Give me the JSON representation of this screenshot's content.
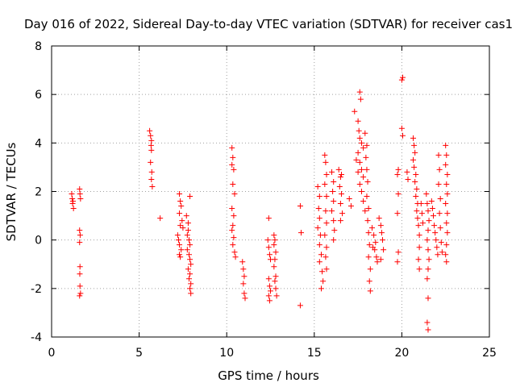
{
  "chart_data": {
    "type": "scatter",
    "title": "Day 016 of 2022, Sidereal Day-to-day VTEC variation (SDTVAR) for receiver cas1",
    "xlabel": "GPS time / hours",
    "ylabel": "SDTVAR / TECUs",
    "xlim": [
      0,
      25
    ],
    "ylim": [
      -4,
      8
    ],
    "xticks": [
      0,
      5,
      10,
      15,
      20,
      25
    ],
    "yticks": [
      -4,
      -2,
      0,
      2,
      4,
      6,
      8
    ],
    "xtick_labels": [
      "0",
      "5",
      "10",
      "15",
      "20",
      "25"
    ],
    "ytick_labels": [
      "-4",
      "-2",
      "0",
      "2",
      "4",
      "6",
      "8"
    ],
    "grid": true,
    "marker": "+",
    "color": "#ff0000",
    "series": [
      {
        "name": "SDTVAR",
        "points": [
          [
            1.15,
            1.9
          ],
          [
            1.18,
            1.7
          ],
          [
            1.2,
            1.5
          ],
          [
            1.25,
            1.3
          ],
          [
            1.22,
            1.6
          ],
          [
            1.6,
            2.1
          ],
          [
            1.62,
            1.9
          ],
          [
            1.65,
            1.7
          ],
          [
            1.6,
            0.4
          ],
          [
            1.63,
            0.2
          ],
          [
            1.6,
            -0.1
          ],
          [
            1.62,
            -1.1
          ],
          [
            1.61,
            -1.4
          ],
          [
            1.62,
            -1.9
          ],
          [
            1.6,
            -2.3
          ],
          [
            1.65,
            -2.2
          ],
          [
            5.6,
            4.5
          ],
          [
            5.65,
            4.3
          ],
          [
            5.7,
            4.1
          ],
          [
            5.68,
            3.9
          ],
          [
            5.7,
            3.7
          ],
          [
            5.65,
            3.2
          ],
          [
            5.72,
            2.8
          ],
          [
            5.7,
            2.5
          ],
          [
            5.75,
            2.2
          ],
          [
            6.2,
            0.9
          ],
          [
            7.3,
            1.9
          ],
          [
            7.35,
            1.6
          ],
          [
            7.4,
            1.4
          ],
          [
            7.3,
            1.1
          ],
          [
            7.45,
            0.8
          ],
          [
            7.35,
            0.6
          ],
          [
            7.5,
            0.5
          ],
          [
            7.2,
            0.2
          ],
          [
            7.25,
            0.0
          ],
          [
            7.3,
            -0.2
          ],
          [
            7.4,
            -0.4
          ],
          [
            7.3,
            -0.6
          ],
          [
            7.35,
            -0.7
          ],
          [
            7.7,
            1.0
          ],
          [
            7.8,
            0.7
          ],
          [
            7.8,
            0.4
          ],
          [
            7.75,
            0.2
          ],
          [
            7.85,
            0.0
          ],
          [
            7.9,
            -0.2
          ],
          [
            7.75,
            -0.4
          ],
          [
            7.85,
            -0.6
          ],
          [
            7.9,
            -0.8
          ],
          [
            7.95,
            -1.0
          ],
          [
            7.8,
            -1.2
          ],
          [
            7.9,
            -1.4
          ],
          [
            7.85,
            -1.6
          ],
          [
            7.95,
            -1.8
          ],
          [
            7.9,
            -2.0
          ],
          [
            7.95,
            -2.2
          ],
          [
            7.9,
            1.8
          ],
          [
            10.3,
            3.8
          ],
          [
            10.35,
            3.4
          ],
          [
            10.3,
            3.1
          ],
          [
            10.4,
            2.9
          ],
          [
            10.35,
            2.3
          ],
          [
            10.45,
            1.9
          ],
          [
            10.3,
            1.3
          ],
          [
            10.4,
            1.0
          ],
          [
            10.35,
            0.6
          ],
          [
            10.3,
            0.4
          ],
          [
            10.4,
            0.1
          ],
          [
            10.35,
            -0.2
          ],
          [
            10.45,
            -0.5
          ],
          [
            10.5,
            -0.7
          ],
          [
            10.9,
            -0.9
          ],
          [
            10.95,
            -1.2
          ],
          [
            11.0,
            -1.5
          ],
          [
            10.95,
            -1.8
          ],
          [
            11.0,
            -2.2
          ],
          [
            11.05,
            -2.4
          ],
          [
            12.4,
            0.9
          ],
          [
            12.35,
            0.0
          ],
          [
            12.4,
            -0.3
          ],
          [
            12.45,
            -0.6
          ],
          [
            12.5,
            -0.8
          ],
          [
            12.4,
            -1.6
          ],
          [
            12.45,
            -1.9
          ],
          [
            12.5,
            -2.1
          ],
          [
            12.4,
            -2.3
          ],
          [
            12.45,
            -2.5
          ],
          [
            12.7,
            0.2
          ],
          [
            12.75,
            0.0
          ],
          [
            12.7,
            -0.2
          ],
          [
            12.8,
            -0.5
          ],
          [
            12.75,
            -0.8
          ],
          [
            12.7,
            -1.1
          ],
          [
            12.8,
            -1.5
          ],
          [
            12.75,
            -1.7
          ],
          [
            12.8,
            -2.0
          ],
          [
            12.85,
            -2.3
          ],
          [
            14.2,
            1.4
          ],
          [
            14.25,
            0.3
          ],
          [
            14.2,
            -2.7
          ],
          [
            15.2,
            2.2
          ],
          [
            15.3,
            1.8
          ],
          [
            15.25,
            1.3
          ],
          [
            15.3,
            0.9
          ],
          [
            15.2,
            0.5
          ],
          [
            15.35,
            0.2
          ],
          [
            15.3,
            -0.2
          ],
          [
            15.4,
            -0.6
          ],
          [
            15.3,
            -0.9
          ],
          [
            15.45,
            -1.3
          ],
          [
            15.5,
            -1.7
          ],
          [
            15.4,
            -2.0
          ],
          [
            15.6,
            3.5
          ],
          [
            15.65,
            3.2
          ],
          [
            15.7,
            2.7
          ],
          [
            15.6,
            2.3
          ],
          [
            15.7,
            1.8
          ],
          [
            15.65,
            1.2
          ],
          [
            15.7,
            0.7
          ],
          [
            15.6,
            0.2
          ],
          [
            15.7,
            -0.3
          ],
          [
            15.65,
            -0.7
          ],
          [
            15.7,
            -1.2
          ],
          [
            16.0,
            2.8
          ],
          [
            16.1,
            2.4
          ],
          [
            16.05,
            2.0
          ],
          [
            16.1,
            1.6
          ],
          [
            16.0,
            1.2
          ],
          [
            16.1,
            0.8
          ],
          [
            16.15,
            0.4
          ],
          [
            16.1,
            0.0
          ],
          [
            16.4,
            2.9
          ],
          [
            16.5,
            2.6
          ],
          [
            16.45,
            2.2
          ],
          [
            16.55,
            1.9
          ],
          [
            16.5,
            1.5
          ],
          [
            16.6,
            1.1
          ],
          [
            16.5,
            0.8
          ],
          [
            16.55,
            2.7
          ],
          [
            17.0,
            1.7
          ],
          [
            17.1,
            1.4
          ],
          [
            17.3,
            5.3
          ],
          [
            17.6,
            6.1
          ],
          [
            17.65,
            5.8
          ],
          [
            17.5,
            4.9
          ],
          [
            17.55,
            4.5
          ],
          [
            17.6,
            4.2
          ],
          [
            17.7,
            4.0
          ],
          [
            17.8,
            3.8
          ],
          [
            17.5,
            3.6
          ],
          [
            17.6,
            3.2
          ],
          [
            17.7,
            2.9
          ],
          [
            17.8,
            2.6
          ],
          [
            17.6,
            2.3
          ],
          [
            17.7,
            2.0
          ],
          [
            17.8,
            1.6
          ],
          [
            17.9,
            1.2
          ],
          [
            17.5,
            2.8
          ],
          [
            17.4,
            3.3
          ],
          [
            17.9,
            4.4
          ],
          [
            18.0,
            3.9
          ],
          [
            17.95,
            3.4
          ],
          [
            18.0,
            2.9
          ],
          [
            18.05,
            2.4
          ],
          [
            18.0,
            1.8
          ],
          [
            18.1,
            1.3
          ],
          [
            18.05,
            0.8
          ],
          [
            18.1,
            0.3
          ],
          [
            18.15,
            -0.2
          ],
          [
            18.1,
            -0.7
          ],
          [
            18.2,
            -1.2
          ],
          [
            18.15,
            -1.7
          ],
          [
            18.2,
            -2.1
          ],
          [
            18.3,
            0.5
          ],
          [
            18.4,
            0.2
          ],
          [
            18.5,
            -0.1
          ],
          [
            18.45,
            -0.4
          ],
          [
            18.55,
            -0.7
          ],
          [
            18.6,
            -0.9
          ],
          [
            18.35,
            -0.3
          ],
          [
            18.7,
            0.9
          ],
          [
            18.8,
            0.6
          ],
          [
            18.85,
            0.3
          ],
          [
            18.9,
            0.0
          ],
          [
            18.95,
            -0.4
          ],
          [
            18.8,
            -0.8
          ],
          [
            19.8,
            2.9
          ],
          [
            19.75,
            2.7
          ],
          [
            19.8,
            1.9
          ],
          [
            19.75,
            1.1
          ],
          [
            19.8,
            -0.5
          ],
          [
            19.75,
            -0.9
          ],
          [
            20.0,
            6.6
          ],
          [
            20.05,
            6.7
          ],
          [
            20.0,
            4.6
          ],
          [
            20.05,
            4.3
          ],
          [
            20.3,
            2.8
          ],
          [
            20.35,
            2.5
          ],
          [
            20.65,
            4.2
          ],
          [
            20.7,
            3.9
          ],
          [
            20.75,
            3.6
          ],
          [
            20.65,
            3.3
          ],
          [
            20.7,
            3.0
          ],
          [
            20.8,
            2.7
          ],
          [
            20.75,
            2.4
          ],
          [
            20.85,
            2.1
          ],
          [
            20.8,
            1.8
          ],
          [
            20.9,
            1.5
          ],
          [
            20.85,
            1.2
          ],
          [
            20.9,
            0.9
          ],
          [
            20.95,
            0.6
          ],
          [
            21.0,
            0.2
          ],
          [
            21.0,
            -0.3
          ],
          [
            20.95,
            -0.8
          ],
          [
            21.0,
            -1.2
          ],
          [
            21.1,
            1.5
          ],
          [
            21.15,
            1.1
          ],
          [
            21.2,
            0.7
          ],
          [
            21.4,
            1.9
          ],
          [
            21.45,
            1.5
          ],
          [
            21.5,
            1.2
          ],
          [
            21.55,
            0.8
          ],
          [
            21.5,
            0.4
          ],
          [
            21.45,
            0.0
          ],
          [
            21.5,
            -0.4
          ],
          [
            21.55,
            -0.8
          ],
          [
            21.5,
            -1.2
          ],
          [
            21.45,
            -1.6
          ],
          [
            21.5,
            -2.4
          ],
          [
            21.45,
            -3.4
          ],
          [
            21.5,
            -3.7
          ],
          [
            21.7,
            1.6
          ],
          [
            21.75,
            1.3
          ],
          [
            21.8,
            1.0
          ],
          [
            21.85,
            0.6
          ],
          [
            21.9,
            0.3
          ],
          [
            21.95,
            0.0
          ],
          [
            22.0,
            -0.3
          ],
          [
            22.05,
            -0.6
          ],
          [
            22.1,
            3.5
          ],
          [
            22.15,
            2.9
          ],
          [
            22.1,
            2.3
          ],
          [
            22.2,
            1.7
          ],
          [
            22.15,
            1.1
          ],
          [
            22.2,
            0.5
          ],
          [
            22.25,
            -0.1
          ],
          [
            22.3,
            -0.5
          ],
          [
            22.5,
            3.9
          ],
          [
            22.55,
            3.5
          ],
          [
            22.5,
            3.1
          ],
          [
            22.6,
            2.7
          ],
          [
            22.55,
            2.3
          ],
          [
            22.6,
            1.9
          ],
          [
            22.5,
            1.5
          ],
          [
            22.6,
            1.1
          ],
          [
            22.55,
            0.7
          ],
          [
            22.6,
            0.3
          ],
          [
            22.55,
            -0.2
          ],
          [
            22.5,
            -0.6
          ],
          [
            22.55,
            -0.9
          ]
        ]
      }
    ]
  }
}
